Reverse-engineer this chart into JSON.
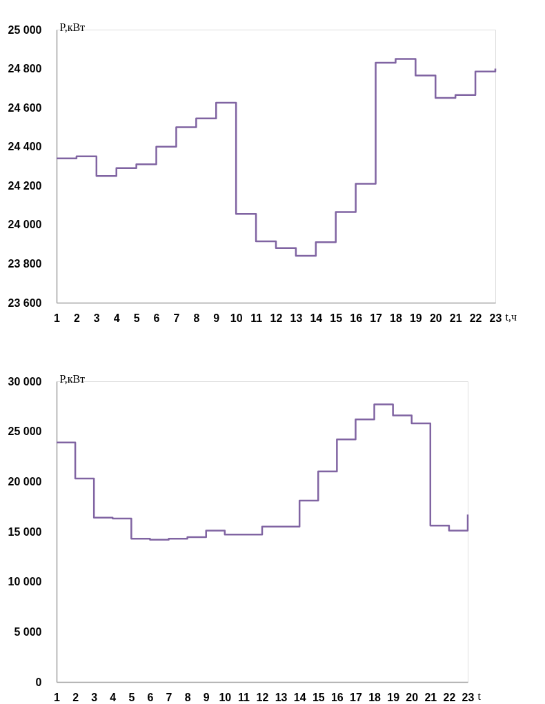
{
  "chart_data": [
    {
      "type": "step",
      "xlabel": "t,ч",
      "ylabel": "P,кВт",
      "grid": false,
      "marker": "none",
      "line_style": "solid",
      "x": [
        1,
        2,
        3,
        4,
        5,
        6,
        7,
        8,
        9,
        10,
        11,
        12,
        13,
        14,
        15,
        16,
        17,
        18,
        19,
        20,
        21,
        22,
        23
      ],
      "series": [
        {
          "color": "#8064a2",
          "values": [
            24340,
            24350,
            24250,
            24290,
            24310,
            24400,
            24500,
            24545,
            24625,
            24055,
            23915,
            23880,
            23840,
            23910,
            24065,
            24210,
            24830,
            24850,
            24765,
            24650,
            24665,
            24785,
            24800
          ]
        }
      ],
      "xlim": [
        1,
        23
      ],
      "xticks": [
        1,
        2,
        3,
        4,
        5,
        6,
        7,
        8,
        9,
        10,
        11,
        12,
        13,
        14,
        15,
        16,
        17,
        18,
        19,
        20,
        21,
        22,
        23
      ],
      "ylim": [
        23600,
        25000
      ],
      "yticks": [
        {
          "value": 23600,
          "label": "23 600"
        },
        {
          "value": 23800,
          "label": "23 800"
        },
        {
          "value": 24000,
          "label": "24 000"
        },
        {
          "value": 24200,
          "label": "24 200"
        },
        {
          "value": 24400,
          "label": "24 400"
        },
        {
          "value": 24600,
          "label": "24 600"
        },
        {
          "value": 24800,
          "label": "24 800"
        },
        {
          "value": 25000,
          "label": "25 000"
        }
      ]
    },
    {
      "type": "step",
      "xlabel": "t",
      "ylabel": "P,кВт",
      "grid": false,
      "marker": "none",
      "line_style": "solid",
      "x": [
        1,
        2,
        3,
        4,
        5,
        6,
        7,
        8,
        9,
        10,
        11,
        12,
        13,
        14,
        15,
        16,
        17,
        18,
        19,
        20,
        21,
        22,
        23
      ],
      "series": [
        {
          "color": "#8064a2",
          "values": [
            23900,
            20300,
            16400,
            16300,
            14300,
            14200,
            14300,
            14450,
            15100,
            14700,
            14700,
            15500,
            15500,
            18100,
            21000,
            24200,
            26200,
            27700,
            26600,
            25800,
            15600,
            15100,
            16700
          ]
        }
      ],
      "xlim": [
        1,
        23
      ],
      "xticks": [
        1,
        2,
        3,
        4,
        5,
        6,
        7,
        8,
        9,
        10,
        11,
        12,
        13,
        14,
        15,
        16,
        17,
        18,
        19,
        20,
        21,
        22,
        23
      ],
      "ylim": [
        0,
        30000
      ],
      "yticks": [
        0,
        {
          "value": 5000,
          "label": "5 000"
        },
        {
          "value": 10000,
          "label": "10 000"
        },
        {
          "value": 15000,
          "label": "15 000"
        },
        {
          "value": 20000,
          "label": "20 000"
        },
        {
          "value": 25000,
          "label": "25 000"
        },
        {
          "value": 30000,
          "label": "30 000"
        }
      ]
    }
  ]
}
